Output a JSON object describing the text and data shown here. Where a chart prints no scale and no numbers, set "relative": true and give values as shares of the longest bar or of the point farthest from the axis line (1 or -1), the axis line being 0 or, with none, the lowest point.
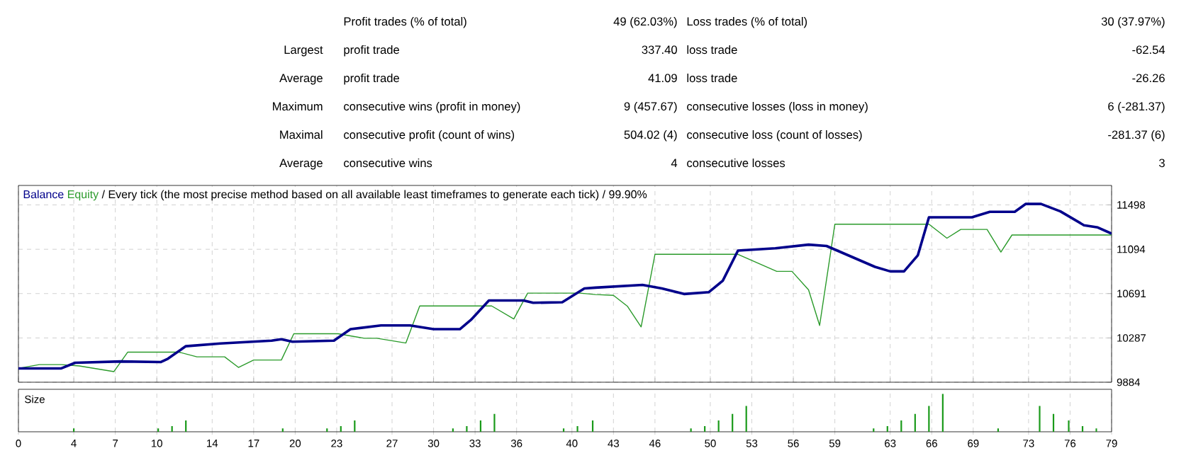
{
  "chart_data": [
    {
      "type": "other",
      "annotations": [
        "Profit trades (% of total)",
        "49 (62.03%)",
        "Loss trades (% of total)",
        "30 (37.97%)",
        "Largest",
        "profit trade",
        "337.40",
        "loss trade",
        "-62.54",
        "Average",
        "profit trade",
        "41.09",
        "loss trade",
        "-26.26",
        "Maximum",
        "consecutive wins (profit in money)",
        "9 (457.67)",
        "consecutive losses (loss in money)",
        "6 (-281.37)",
        "Maximal",
        "consecutive profit (count of wins)",
        "504.02 (4)",
        "consecutive loss (count of losses)",
        "-281.37 (6)",
        "Average",
        "consecutive wins",
        "4",
        "consecutive losses",
        "3"
      ]
    },
    {
      "type": "line",
      "title": "/ Every tick (the most precise method based on all available least timeframes to generate each tick) / 99.90%",
      "legend": "top left",
      "grid": true,
      "tick_labels": "y",
      "xlim": [
        0,
        79
      ],
      "ylim": [
        9884,
        11675
      ],
      "yticks": [
        9884,
        10287,
        10691,
        11094,
        11498
      ],
      "xticks": [
        0,
        4,
        7,
        10,
        14,
        17,
        20,
        23,
        27,
        30,
        33,
        36,
        40,
        43,
        46,
        50,
        53,
        56,
        59,
        63,
        66,
        69,
        73,
        76,
        79
      ],
      "series": [
        {
          "name": "Equity",
          "color": "#2a9a2a",
          "x": [
            0,
            1.5,
            3.1,
            4.4,
            6.9,
            7.9,
            11.6,
            12.9,
            14.9,
            15.9,
            17,
            19,
            19.9,
            23.1,
            25,
            25.9,
            28,
            29,
            34.2,
            35.8,
            36.8,
            40.6,
            41.7,
            43,
            44,
            45,
            46,
            52,
            54.8,
            55.9,
            57.1,
            57.9,
            59,
            65.8,
            67.1,
            68.1,
            70,
            71,
            71.8,
            79
          ],
          "values": [
            10010,
            10044,
            10044,
            10032,
            9981,
            10158,
            10158,
            10115,
            10115,
            10019,
            10086,
            10086,
            10325,
            10325,
            10284,
            10284,
            10241,
            10578,
            10578,
            10460,
            10695,
            10695,
            10682,
            10675,
            10577,
            10388,
            11048,
            11048,
            10893,
            10893,
            10725,
            10401,
            11322,
            11322,
            11195,
            11275,
            11275,
            11069,
            11224,
            11224
          ]
        },
        {
          "name": "Balance",
          "color": "#00008b",
          "x": [
            0,
            3.1,
            4.1,
            7.4,
            10.3,
            10.8,
            12.1,
            14.6,
            18.3,
            19,
            19.8,
            22.8,
            24,
            26.2,
            28.3,
            30,
            31.9,
            32.7,
            34,
            36.5,
            37.2,
            39.3,
            40.9,
            41.7,
            45.1,
            46.5,
            48.1,
            49.9,
            50.9,
            52,
            54.7,
            57.1,
            58.4,
            61.9,
            63,
            64,
            65,
            65.8,
            68.9,
            70.2,
            72,
            72.8,
            73.9,
            75.3,
            77,
            78,
            79
          ],
          "values": [
            10010,
            10010,
            10061,
            10073,
            10068,
            10098,
            10212,
            10237,
            10262,
            10275,
            10253,
            10262,
            10367,
            10401,
            10401,
            10367,
            10367,
            10451,
            10628,
            10628,
            10607,
            10612,
            10738,
            10745,
            10770,
            10738,
            10687,
            10704,
            10808,
            11082,
            11103,
            11136,
            11124,
            10934,
            10893,
            10893,
            11040,
            11385,
            11385,
            11435,
            11435,
            11507,
            11507,
            11439,
            11313,
            11293,
            11237
          ]
        }
      ]
    },
    {
      "type": "bar",
      "title": "Size",
      "relative": true,
      "grid": "x",
      "tick_labels": "x",
      "color": "#1a9a1a",
      "xlim": [
        0,
        79
      ],
      "xticks": [
        0,
        4,
        7,
        10,
        14,
        17,
        20,
        23,
        27,
        30,
        33,
        36,
        40,
        43,
        46,
        50,
        53,
        56,
        59,
        63,
        66,
        69,
        73,
        76,
        79
      ],
      "x": [
        4,
        10.1,
        11.1,
        12.1,
        19.1,
        22.3,
        23.3,
        24.3,
        31.4,
        32.4,
        33.4,
        34.4,
        39.4,
        40.4,
        41.5,
        48.6,
        49.6,
        50.6,
        51.6,
        52.6,
        61.8,
        62.8,
        63.8,
        64.8,
        65.8,
        66.8,
        70.8,
        73.8,
        74.8,
        75.9,
        76.9,
        77.9
      ],
      "values": [
        0.09,
        0.09,
        0.15,
        0.3,
        0.09,
        0.09,
        0.15,
        0.3,
        0.09,
        0.15,
        0.3,
        0.47,
        0.09,
        0.15,
        0.3,
        0.09,
        0.15,
        0.3,
        0.47,
        0.68,
        0.09,
        0.15,
        0.3,
        0.47,
        0.68,
        1,
        0.09,
        0.68,
        0.47,
        0.3,
        0.15,
        0.09
      ]
    }
  ]
}
